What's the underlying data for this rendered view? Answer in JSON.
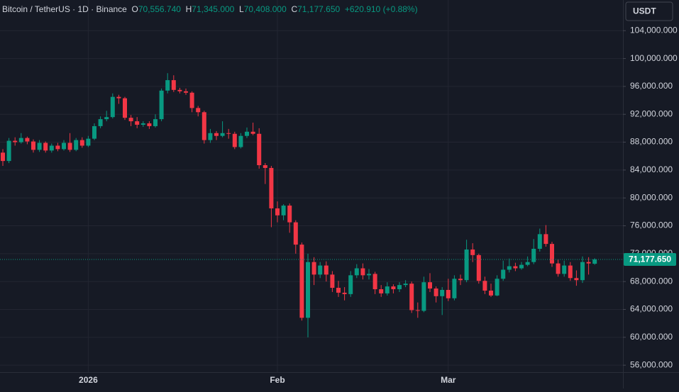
{
  "chart_data": {
    "type": "candlestick",
    "legend": {
      "symbol": "Bitcoin / TetherUS · 1D · Binance",
      "items": [
        {
          "key": "O",
          "value": "70,556.740"
        },
        {
          "key": "H",
          "value": "71,345.000"
        },
        {
          "key": "L",
          "value": "70,408.000"
        },
        {
          "key": "C",
          "value": "71,177.650"
        }
      ],
      "change": "+620.910 (+0.88%)"
    },
    "currency": "USDT",
    "last_price_label": "71,177.650",
    "categories": [
      null,
      null,
      null,
      null,
      null,
      null,
      null,
      null,
      null,
      null,
      null,
      null,
      null,
      null,
      "2026",
      null,
      null,
      null,
      null,
      null,
      null,
      null,
      null,
      null,
      null,
      null,
      null,
      null,
      null,
      null,
      null,
      null,
      null,
      null,
      null,
      null,
      null,
      null,
      null,
      null,
      null,
      null,
      null,
      null,
      null,
      "Feb",
      null,
      null,
      null,
      null,
      null,
      null,
      null,
      null,
      null,
      null,
      null,
      null,
      null,
      null,
      null,
      null,
      null,
      null,
      null,
      null,
      null,
      null,
      null,
      null,
      null,
      null,
      null,
      "Mar",
      null,
      null,
      null,
      null,
      null,
      null,
      null,
      null,
      null,
      null,
      null,
      null,
      null,
      null,
      null,
      null,
      null,
      null,
      null,
      null,
      null,
      null,
      null,
      null
    ],
    "open": [
      86500,
      85300,
      88200,
      88000,
      88600,
      88100,
      86900,
      87900,
      86800,
      87500,
      87000,
      87900,
      86900,
      88300,
      87500,
      88500,
      90300,
      91300,
      91600,
      94500,
      94300,
      91500,
      91000,
      90500,
      90700,
      90300,
      91300,
      95400,
      96900,
      95500,
      95300,
      95100,
      92900,
      92300,
      88300,
      89300,
      88900,
      89300,
      89200,
      87300,
      88900,
      89500,
      89200,
      84700,
      84300,
      78500,
      77500,
      78900,
      76500,
      73300,
      62800,
      70800,
      69000,
      70300,
      69000,
      67100,
      66400,
      66200,
      68900,
      69900,
      68900,
      69100,
      66900,
      66300,
      67300,
      66900,
      67500,
      67700,
      63900,
      63800,
      67900,
      67000,
      65900,
      66800,
      65600,
      68400,
      68200,
      72600,
      71800,
      68100,
      66700,
      66000,
      68400,
      69700,
      70200,
      69900,
      70400,
      70800,
      72700,
      74800,
      73400,
      70600,
      69100,
      70300,
      68500,
      68200,
      70800,
      70556.74
    ],
    "high": [
      87000,
      88600,
      88700,
      89300,
      88800,
      88400,
      88300,
      88100,
      87800,
      87900,
      88300,
      89300,
      88600,
      88700,
      88900,
      90700,
      91700,
      92500,
      95000,
      94800,
      94500,
      91900,
      91600,
      91000,
      91000,
      92000,
      95700,
      97900,
      97600,
      95800,
      95700,
      95300,
      93200,
      92500,
      89900,
      89600,
      91000,
      89900,
      89500,
      89300,
      90100,
      90800,
      90000,
      85000,
      84600,
      79500,
      79100,
      79200,
      76800,
      73600,
      72000,
      71500,
      70800,
      70900,
      69500,
      68100,
      67200,
      69500,
      70500,
      70600,
      69800,
      69400,
      67500,
      67900,
      67600,
      67900,
      68200,
      68000,
      65000,
      68700,
      69200,
      67300,
      67200,
      68400,
      68900,
      69000,
      74000,
      73500,
      72000,
      68700,
      67700,
      68900,
      71000,
      71300,
      70700,
      70800,
      71600,
      74100,
      75600,
      76100,
      73700,
      71200,
      71000,
      70800,
      69600,
      71600,
      71500,
      71345
    ],
    "low": [
      84600,
      85000,
      87500,
      87800,
      87700,
      86500,
      86600,
      86500,
      86500,
      86700,
      86800,
      86600,
      86700,
      87200,
      87300,
      88300,
      90000,
      91000,
      91400,
      93500,
      91200,
      90300,
      90000,
      90200,
      89900,
      90100,
      91000,
      95000,
      95200,
      95000,
      94800,
      92300,
      91700,
      87800,
      87900,
      88300,
      88700,
      88500,
      87000,
      87100,
      88600,
      89000,
      84200,
      82000,
      75800,
      76500,
      76800,
      75000,
      72000,
      62400,
      60000,
      67500,
      68500,
      68000,
      66500,
      65800,
      65300,
      65800,
      68500,
      68300,
      68300,
      66200,
      65800,
      66000,
      66300,
      66500,
      67200,
      63500,
      62800,
      63600,
      66500,
      65000,
      63200,
      65200,
      65300,
      67500,
      67900,
      70800,
      67700,
      66200,
      65800,
      65900,
      68100,
      69300,
      69500,
      69700,
      70200,
      70500,
      72300,
      73000,
      70100,
      68700,
      68700,
      68100,
      67400,
      67800,
      69000,
      70408
    ],
    "close": [
      85300,
      88200,
      88000,
      88600,
      88100,
      86900,
      87900,
      86800,
      87500,
      87000,
      87900,
      86900,
      88300,
      87500,
      88500,
      90300,
      91300,
      91600,
      94500,
      94300,
      91500,
      91000,
      90500,
      90700,
      90300,
      91300,
      95400,
      96900,
      95500,
      95300,
      95100,
      92900,
      92300,
      88300,
      89300,
      88900,
      89300,
      89200,
      87300,
      88900,
      89500,
      89200,
      84700,
      84300,
      78500,
      77500,
      78900,
      76500,
      73300,
      62800,
      70800,
      69000,
      70300,
      69000,
      67100,
      66400,
      66200,
      68900,
      69900,
      68900,
      69100,
      66900,
      66300,
      67300,
      66900,
      67500,
      67700,
      63900,
      63800,
      67900,
      67000,
      65900,
      66800,
      65600,
      68400,
      68200,
      72600,
      71800,
      68100,
      66700,
      66000,
      68400,
      69700,
      70200,
      69900,
      70400,
      70800,
      72700,
      74800,
      73400,
      70600,
      69100,
      70300,
      68500,
      68200,
      70800,
      70600,
      71177.65
    ],
    "up_color": "#089981",
    "down_color": "#f23645",
    "ylim": [
      55000,
      108400
    ],
    "yticks": [
      {
        "value": 56000,
        "label": "56,000.000"
      },
      {
        "value": 60000,
        "label": "60,000.000"
      },
      {
        "value": 64000,
        "label": "64,000.000"
      },
      {
        "value": 68000,
        "label": "68,000.000"
      },
      {
        "value": 72000,
        "label": "72,000.000"
      },
      {
        "value": 76000,
        "label": "76,000.000"
      },
      {
        "value": 80000,
        "label": "80,000.000"
      },
      {
        "value": 84000,
        "label": "84,000.000"
      },
      {
        "value": 88000,
        "label": "88,000.000"
      },
      {
        "value": 92000,
        "label": "92,000.000"
      },
      {
        "value": 96000,
        "label": "96,000.000"
      },
      {
        "value": 100000,
        "label": "100,000.000"
      },
      {
        "value": 104000,
        "label": "104,000.000"
      }
    ],
    "grid": true
  }
}
